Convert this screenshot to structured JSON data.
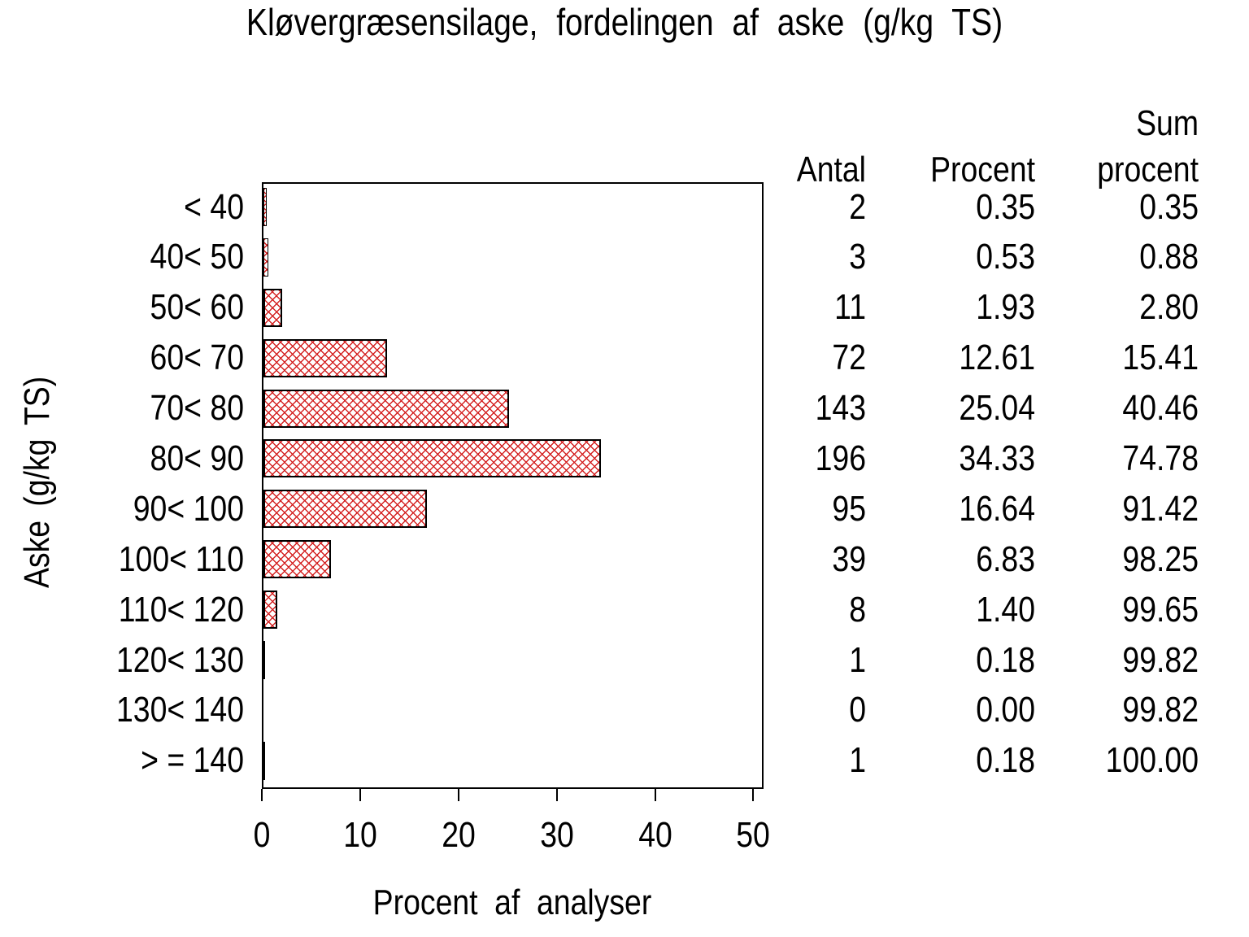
{
  "title": "Kløvergræsensilage, fordelingen af aske  (g/kg TS)",
  "colors": {
    "background": "#ffffff",
    "text": "#000000",
    "bar_border": "#000000",
    "bar_hatch": "#d42222"
  },
  "chart_data": {
    "type": "bar",
    "orientation": "horizontal",
    "title": "Kløvergræsensilage, fordelingen af aske  (g/kg TS)",
    "xlabel": "Procent af analyser",
    "ylabel": "Aske (g/kg TS)",
    "xlim": [
      0,
      51
    ],
    "xticks": [
      0,
      10,
      20,
      30,
      40,
      50
    ],
    "grid": "off",
    "legend": "none",
    "bar_style": "red diagonal crosshatch on white, black outline",
    "categories": [
      "< 40",
      "40< 50",
      "50< 60",
      "60< 70",
      "70< 80",
      "80< 90",
      "90< 100",
      "100< 110",
      "110< 120",
      "120< 130",
      "130< 140",
      "> = 140"
    ],
    "values": [
      0.35,
      0.53,
      1.93,
      12.61,
      25.04,
      34.33,
      16.64,
      6.83,
      1.4,
      0.18,
      0.0,
      0.18
    ]
  },
  "table": {
    "columns": [
      "Antal",
      "Procent",
      "Sum procent"
    ],
    "header": {
      "antal": "Antal",
      "procent": "Procent",
      "sum_line1": "Sum",
      "sum_line2": "procent"
    },
    "rows": [
      [
        "2",
        "0.35",
        "0.35"
      ],
      [
        "3",
        "0.53",
        "0.88"
      ],
      [
        "11",
        "1.93",
        "2.80"
      ],
      [
        "72",
        "12.61",
        "15.41"
      ],
      [
        "143",
        "25.04",
        "40.46"
      ],
      [
        "196",
        "34.33",
        "74.78"
      ],
      [
        "95",
        "16.64",
        "91.42"
      ],
      [
        "39",
        "6.83",
        "98.25"
      ],
      [
        "8",
        "1.40",
        "99.65"
      ],
      [
        "1",
        "0.18",
        "99.82"
      ],
      [
        "0",
        "0.00",
        "99.82"
      ],
      [
        "1",
        "0.18",
        "100.00"
      ]
    ]
  }
}
